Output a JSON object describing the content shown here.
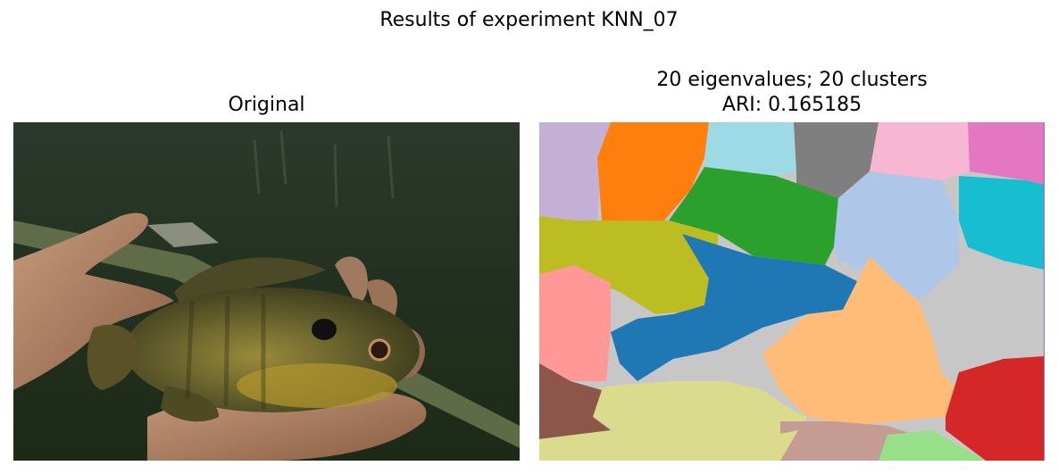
{
  "figure": {
    "suptitle": "Results of experiment KNN_07"
  },
  "panels": [
    {
      "title": "Original",
      "content": "photo of a sunfish held in two hands"
    },
    {
      "title_line1": "20 eigenvalues; 20 clusters",
      "title_line2": "ARI: 0.165185",
      "content": "segmentation map with 20 colored clusters"
    }
  ],
  "cluster_colors": [
    "#c5b0d5",
    "#ff7f0e",
    "#9edae5",
    "#7f7f7f",
    "#f7b6d2",
    "#e377c2",
    "#2ca02c",
    "#aec7e8",
    "#17becf",
    "#bcbd22",
    "#1f77b4",
    "#ff9896",
    "#ffbb78",
    "#c7c7c7",
    "#dbdb8d",
    "#8c564b",
    "#c49c94",
    "#98df8a",
    "#d62728",
    "#9467bd"
  ]
}
